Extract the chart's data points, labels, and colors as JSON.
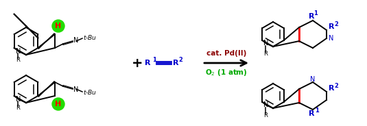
{
  "title": "",
  "background": "#ffffff",
  "arrow_color": "#000000",
  "condition_color1": "#8B0000",
  "condition_color2": "#00AA00",
  "blue_color": "#0000CC",
  "red_color": "#CC0000",
  "green_color": "#00CC00",
  "black_color": "#000000",
  "condition_text1": "cat. Pd(II)",
  "condition_text2": "O",
  "condition_text2b": "2",
  "condition_text2c": " (1 atm)",
  "plus_sign": "+",
  "alkyne_left": "R",
  "alkyne_right": "R",
  "superscript1": "1",
  "superscript2": "2",
  "tbu": "t",
  "bu": "-Bu",
  "N_label": "N",
  "R_label": "R",
  "H_label": "H"
}
